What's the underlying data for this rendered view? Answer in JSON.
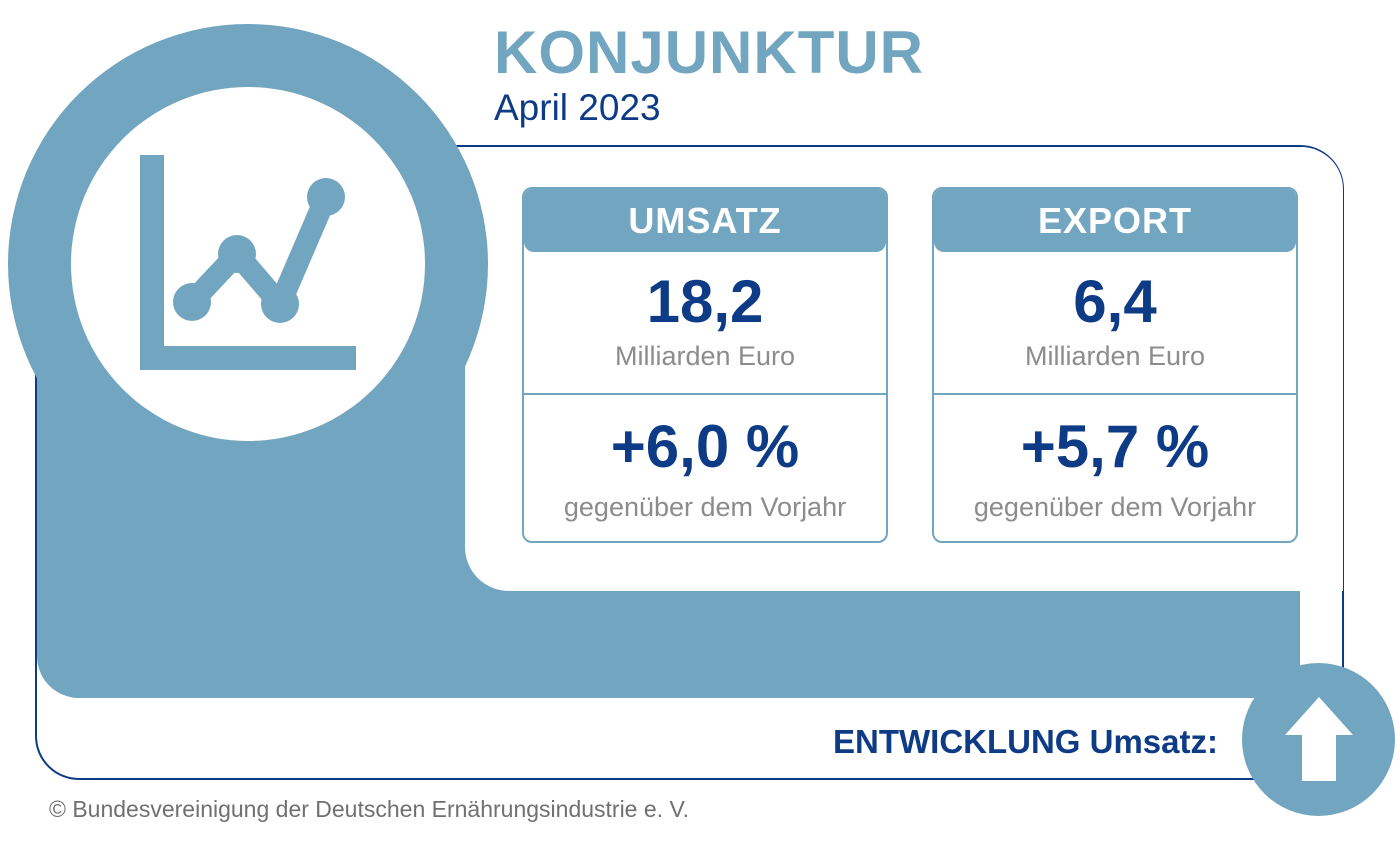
{
  "header": {
    "title": "KONJUNKTUR",
    "subtitle": "April 2023"
  },
  "cards": [
    {
      "label": "UMSATZ",
      "value": "18,2",
      "unit": "Milliarden Euro",
      "change": "+6,0 %",
      "compare": "gegenüber dem Vorjahr"
    },
    {
      "label": "EXPORT",
      "value": "6,4",
      "unit": "Milliarden Euro",
      "change": "+5,7 %",
      "compare": "gegenüber dem Vorjahr"
    }
  ],
  "trend": {
    "label": "ENTWICKLUNG Umsatz:",
    "icon": "arrow-up-icon"
  },
  "footer": {
    "copyright": "© Bundesvereinigung der Deutschen Ernährungsindustrie e. V."
  },
  "icons": {
    "main": "line-chart-icon"
  },
  "colors": {
    "accent": "#72a6c0",
    "dark_blue": "#0e3b86",
    "gray_text": "#8c8c8c"
  }
}
